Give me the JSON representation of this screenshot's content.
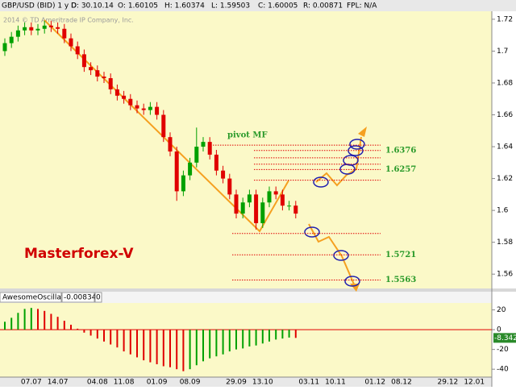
{
  "header": {
    "symbol": "GBP/USD (BID) 1 y D",
    "date": "D: 30.10.14",
    "open": "O: 1.60105",
    "high": "H: 1.60374",
    "low": "L: 1.59503",
    "close": "C: 1.60005",
    "range": "R: 0.00871",
    "fpl": "FPL: N/A"
  },
  "watermark": "2014 © TD Ameritrade IP Company, Inc.",
  "brand": "Masterforex-V",
  "chart_data": [
    {
      "type": "candlestick",
      "annotation": "pivot MF",
      "categories": [
        null,
        null,
        null,
        null,
        "07.07",
        null,
        null,
        null,
        "14.07",
        null,
        null,
        null,
        null,
        null,
        "04.08",
        null,
        null,
        null,
        "11.08",
        null,
        null,
        null,
        null,
        "01.09",
        null,
        null,
        null,
        null,
        "08.09",
        null,
        null,
        null,
        null,
        null,
        null,
        "29.09",
        null,
        null,
        null,
        "13.10",
        null,
        null,
        null,
        null,
        null,
        null,
        "03.11",
        null,
        null,
        null,
        "10.11",
        null,
        null,
        null,
        null,
        null,
        "01.12",
        null,
        null,
        null,
        "08.12",
        null,
        null,
        null,
        null,
        null,
        null,
        "29.12",
        null,
        null,
        null,
        "12.01",
        null
      ],
      "open": [
        1.7,
        1.705,
        1.709,
        1.713,
        1.715,
        1.713,
        1.714,
        1.716,
        1.715,
        1.714,
        1.708,
        1.703,
        1.698,
        1.69,
        1.688,
        1.684,
        1.683,
        1.676,
        1.672,
        1.67,
        1.666,
        1.664,
        1.663,
        1.665,
        1.66,
        1.646,
        1.637,
        1.612,
        1.622,
        1.63,
        1.64,
        1.643,
        1.635,
        1.625,
        1.62,
        1.61,
        1.598,
        1.605,
        1.61,
        1.592,
        1.605,
        1.612,
        1.61,
        1.603,
        1.603,
        null,
        null,
        null,
        null,
        null,
        null,
        null,
        null,
        null,
        null,
        null,
        null,
        null,
        null,
        null,
        null,
        null,
        null,
        null,
        null,
        null,
        null,
        null,
        null,
        null,
        null,
        null,
        null
      ],
      "high": [
        1.708,
        1.712,
        1.716,
        1.718,
        1.718,
        1.717,
        1.719,
        1.719,
        1.718,
        1.717,
        1.711,
        1.706,
        1.701,
        1.693,
        1.691,
        1.687,
        1.686,
        1.679,
        1.675,
        1.673,
        1.669,
        1.667,
        1.668,
        1.668,
        1.663,
        1.649,
        1.64,
        1.625,
        1.633,
        1.652,
        1.646,
        1.646,
        1.638,
        1.628,
        1.623,
        1.613,
        1.608,
        1.613,
        1.613,
        1.608,
        1.615,
        1.615,
        1.613,
        1.606,
        1.606,
        null,
        null,
        null,
        null,
        null,
        null,
        null,
        null,
        null,
        null,
        null,
        null,
        null,
        null,
        null,
        null,
        null,
        null,
        null,
        null,
        null,
        null,
        null,
        null,
        null,
        null,
        null,
        null
      ],
      "low": [
        1.697,
        1.702,
        1.706,
        1.71,
        1.71,
        1.71,
        1.711,
        1.712,
        1.711,
        1.705,
        1.7,
        1.695,
        1.687,
        1.685,
        1.681,
        1.68,
        1.673,
        1.669,
        1.667,
        1.663,
        1.661,
        1.66,
        1.66,
        1.657,
        1.643,
        1.634,
        1.606,
        1.609,
        1.619,
        1.627,
        1.637,
        1.632,
        1.622,
        1.617,
        1.607,
        1.595,
        1.595,
        1.602,
        1.588,
        1.589,
        1.602,
        1.607,
        1.6,
        1.6,
        1.595,
        null,
        null,
        null,
        null,
        null,
        null,
        null,
        null,
        null,
        null,
        null,
        null,
        null,
        null,
        null,
        null,
        null,
        null,
        null,
        null,
        null,
        null,
        null,
        null,
        null,
        null,
        null,
        null
      ],
      "close": [
        1.705,
        1.709,
        1.713,
        1.715,
        1.713,
        1.714,
        1.716,
        1.715,
        1.714,
        1.708,
        1.703,
        1.698,
        1.69,
        1.688,
        1.684,
        1.683,
        1.676,
        1.672,
        1.67,
        1.666,
        1.664,
        1.663,
        1.665,
        1.66,
        1.646,
        1.637,
        1.612,
        1.622,
        1.63,
        1.64,
        1.643,
        1.635,
        1.625,
        1.62,
        1.61,
        1.598,
        1.605,
        1.61,
        1.592,
        1.605,
        1.612,
        1.61,
        1.603,
        1.603,
        1.598,
        null,
        null,
        null,
        null,
        null,
        null,
        null,
        null,
        null,
        null,
        null,
        null,
        null,
        null,
        null,
        null,
        null,
        null,
        null,
        null,
        null,
        null,
        null,
        null,
        null,
        null,
        null,
        null
      ],
      "up_color": "#00a000",
      "down_color": "#e00000",
      "levels": [
        1.641,
        1.6376,
        1.633,
        1.629,
        1.6257,
        1.619,
        1.5855,
        1.5721,
        1.5563
      ],
      "level_color": "#e00000",
      "ylim": [
        1.551,
        1.725
      ],
      "yticks": [
        1.56,
        1.58,
        1.6,
        1.62,
        1.64,
        1.66,
        1.68,
        1.7,
        1.72
      ]
    },
    {
      "type": "bar",
      "title": "AwesomeOscillator",
      "current_label": "-0.008342",
      "signal_label": "0",
      "values": [
        8,
        12,
        17,
        21,
        22,
        21,
        19,
        16,
        13,
        9,
        5,
        1,
        -3,
        -6,
        -9,
        -12,
        -15,
        -18,
        -22,
        -25,
        -28,
        -31,
        -33,
        -35,
        -37,
        -38,
        -40,
        -42,
        -40,
        -36,
        -32,
        -29,
        -27,
        -25,
        -22,
        -20,
        -19,
        -17,
        -16,
        -14,
        -12,
        -10,
        -9,
        -8,
        -8.342,
        null,
        null,
        null,
        null,
        null,
        null,
        null,
        null,
        null,
        null,
        null,
        null,
        null,
        null,
        null,
        null,
        null,
        null,
        null,
        null,
        null,
        null,
        null,
        null,
        null,
        null,
        null,
        null
      ],
      "up_color": "#00a000",
      "down_color": "#e00000",
      "zero_color": "#e00000",
      "ylim": [
        -48,
        27
      ],
      "yticks": [
        20,
        0,
        -20,
        -40
      ]
    }
  ]
}
